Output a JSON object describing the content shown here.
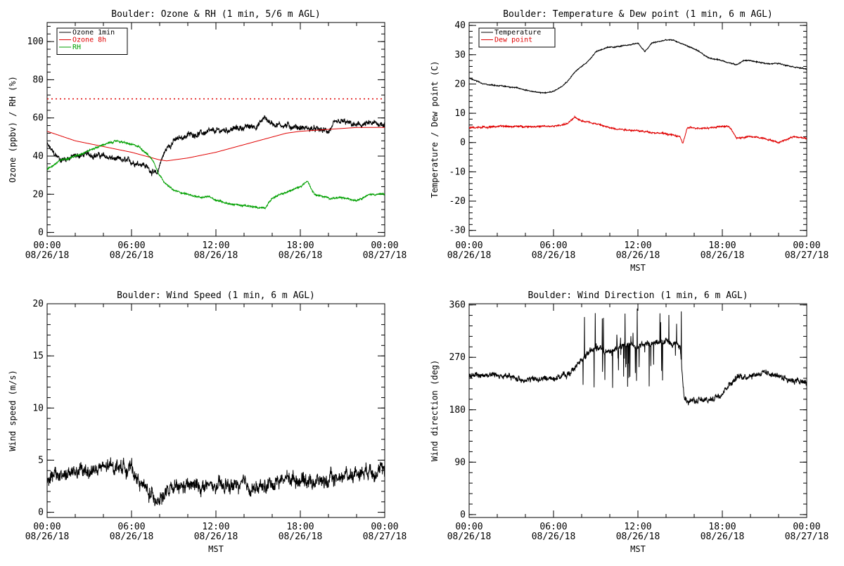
{
  "chart_data": [
    {
      "id": "ozone_rh",
      "type": "line",
      "title": "Boulder: Ozone & RH (1 min, 5/6 m AGL)",
      "ylabel": "Ozone (ppbv) / RH (%)",
      "xlabel": "",
      "ylim": [
        -2,
        110
      ],
      "yticks": [
        0,
        20,
        40,
        60,
        80,
        100
      ],
      "xticks": [
        "00:00\n08/26/18",
        "06:00\n08/26/18",
        "12:00\n08/26/18",
        "18:00\n08/26/18",
        "00:00\n08/27/18"
      ],
      "xlim_hours": [
        0,
        24
      ],
      "legend": {
        "position": "top-left",
        "entries": [
          "Ozone 1min",
          "Ozone 8h",
          "RH"
        ]
      },
      "reference_line": {
        "y": 70,
        "color": "#e00000",
        "style": "dotted"
      },
      "series": [
        {
          "name": "Ozone 1min",
          "color": "#000000",
          "noise": 2.0,
          "points": [
            [
              0,
              46
            ],
            [
              0.5,
              41
            ],
            [
              1,
              38
            ],
            [
              2,
              40
            ],
            [
              3,
              41
            ],
            [
              4,
              40
            ],
            [
              5,
              38
            ],
            [
              6,
              37
            ],
            [
              6.8,
              36
            ],
            [
              7.3,
              33
            ],
            [
              7.8,
              30
            ],
            [
              8.1,
              38
            ],
            [
              8.5,
              44
            ],
            [
              9,
              48
            ],
            [
              10,
              51
            ],
            [
              11,
              52
            ],
            [
              12,
              53
            ],
            [
              13,
              54
            ],
            [
              14,
              55
            ],
            [
              15,
              56
            ],
            [
              15.3,
              59
            ],
            [
              15.5,
              60
            ],
            [
              16,
              57
            ],
            [
              17,
              56
            ],
            [
              18,
              55
            ],
            [
              19,
              54
            ],
            [
              20,
              53
            ],
            [
              20.5,
              57
            ],
            [
              21,
              58
            ],
            [
              22,
              56
            ],
            [
              23,
              57
            ],
            [
              24,
              57
            ]
          ]
        },
        {
          "name": "Ozone 8h",
          "color": "#e00000",
          "noise": 0,
          "points": [
            [
              0,
              53
            ],
            [
              2,
              48
            ],
            [
              4,
              45
            ],
            [
              6,
              42
            ],
            [
              7,
              40
            ],
            [
              8,
              38
            ],
            [
              8.5,
              37.5
            ],
            [
              10,
              39
            ],
            [
              12,
              42
            ],
            [
              14,
              46
            ],
            [
              16,
              50
            ],
            [
              17,
              52
            ],
            [
              18,
              53
            ],
            [
              20,
              54
            ],
            [
              22,
              55
            ],
            [
              24,
              55
            ]
          ]
        },
        {
          "name": "RH",
          "color": "#00a000",
          "noise": 0.6,
          "points": [
            [
              0,
              33
            ],
            [
              1,
              38
            ],
            [
              2,
              40
            ],
            [
              3,
              43
            ],
            [
              4,
              46
            ],
            [
              5,
              48
            ],
            [
              6,
              46
            ],
            [
              6.5,
              45
            ],
            [
              7,
              42
            ],
            [
              7.5,
              38
            ],
            [
              8,
              30
            ],
            [
              8.5,
              25
            ],
            [
              9,
              22
            ],
            [
              10,
              20
            ],
            [
              11,
              18
            ],
            [
              11.5,
              19
            ],
            [
              12,
              17
            ],
            [
              13,
              15
            ],
            [
              14,
              14
            ],
            [
              15,
              13
            ],
            [
              15.5,
              13
            ],
            [
              16,
              18
            ],
            [
              17,
              21
            ],
            [
              18,
              24
            ],
            [
              18.5,
              27
            ],
            [
              19,
              20
            ],
            [
              20,
              18
            ],
            [
              21,
              18
            ],
            [
              22,
              17
            ],
            [
              23,
              20
            ],
            [
              24,
              20
            ]
          ]
        }
      ]
    },
    {
      "id": "temp_dew",
      "type": "line",
      "title": "Boulder: Temperature & Dew point (1 min, 6 m AGL)",
      "ylabel": "Temperature / Dew point (C)",
      "xlabel": "MST",
      "ylim": [
        -32,
        41
      ],
      "yticks": [
        -30,
        -20,
        -10,
        0,
        10,
        20,
        30,
        40
      ],
      "xticks": [
        "00:00\n08/26/18",
        "06:00\n08/26/18",
        "12:00\n08/26/18",
        "18:00\n08/26/18",
        "00:00\n08/27/18"
      ],
      "xlim_hours": [
        0,
        24
      ],
      "legend": {
        "position": "top-left",
        "entries": [
          "Temperature",
          "Dew point"
        ]
      },
      "series": [
        {
          "name": "Temperature",
          "color": "#000000",
          "noise": 0.25,
          "points": [
            [
              0,
              22
            ],
            [
              1,
              20
            ],
            [
              2,
              19.5
            ],
            [
              3,
              19
            ],
            [
              4,
              18
            ],
            [
              5,
              17
            ],
            [
              5.5,
              17
            ],
            [
              6,
              17.5
            ],
            [
              6.5,
              19
            ],
            [
              7,
              21
            ],
            [
              7.5,
              24
            ],
            [
              8,
              26
            ],
            [
              8.5,
              28
            ],
            [
              9,
              31
            ],
            [
              9.5,
              32
            ],
            [
              10,
              32.5
            ],
            [
              11,
              33
            ],
            [
              12,
              34
            ],
            [
              12.5,
              31
            ],
            [
              13,
              34
            ],
            [
              14,
              35
            ],
            [
              14.5,
              35
            ],
            [
              15,
              34
            ],
            [
              15.5,
              33
            ],
            [
              16,
              32
            ],
            [
              17,
              29
            ],
            [
              18,
              28
            ],
            [
              19,
              26.5
            ],
            [
              19.5,
              28
            ],
            [
              20,
              28
            ],
            [
              21,
              27
            ],
            [
              22,
              27
            ],
            [
              23,
              26
            ],
            [
              24,
              25
            ]
          ]
        },
        {
          "name": "Dew point",
          "color": "#e00000",
          "noise": 0.35,
          "points": [
            [
              0,
              5
            ],
            [
              2,
              5.5
            ],
            [
              4,
              5.5
            ],
            [
              6,
              5.5
            ],
            [
              7,
              6.5
            ],
            [
              7.5,
              8.5
            ],
            [
              8,
              7.5
            ],
            [
              9,
              6.5
            ],
            [
              10,
              5
            ],
            [
              11,
              4.5
            ],
            [
              12,
              4
            ],
            [
              13,
              3.5
            ],
            [
              14,
              3
            ],
            [
              15,
              2
            ],
            [
              15.2,
              -0.5
            ],
            [
              15.5,
              5
            ],
            [
              16,
              5
            ],
            [
              17,
              5
            ],
            [
              18,
              5.5
            ],
            [
              18.5,
              5.5
            ],
            [
              19,
              1.5
            ],
            [
              20,
              2
            ],
            [
              21,
              1.5
            ],
            [
              22,
              0
            ],
            [
              23,
              2
            ],
            [
              24,
              1.5
            ]
          ]
        }
      ]
    },
    {
      "id": "wind_speed",
      "type": "line",
      "title": "Boulder: Wind Speed (1 min, 6 m AGL)",
      "ylabel": "Wind speed (m/s)",
      "xlabel": "MST",
      "ylim": [
        -0.5,
        20
      ],
      "yticks": [
        0,
        5,
        10,
        15,
        20
      ],
      "xticks": [
        "00:00\n08/26/18",
        "06:00\n08/26/18",
        "12:00\n08/26/18",
        "18:00\n08/26/18",
        "00:00\n08/27/18"
      ],
      "xlim_hours": [
        0,
        24
      ],
      "series": [
        {
          "name": "",
          "color": "#000000",
          "noise": 0.9,
          "points": [
            [
              0,
              3.2
            ],
            [
              1,
              3.6
            ],
            [
              2,
              3.8
            ],
            [
              3,
              4
            ],
            [
              4,
              4.2
            ],
            [
              5,
              4.5
            ],
            [
              6,
              4.2
            ],
            [
              6.5,
              3
            ],
            [
              7,
              2.2
            ],
            [
              7.5,
              1.5
            ],
            [
              8,
              1.4
            ],
            [
              9,
              2.2
            ],
            [
              10,
              2.5
            ],
            [
              11,
              2.5
            ],
            [
              12,
              2.4
            ],
            [
              13,
              2.5
            ],
            [
              14,
              2.6
            ],
            [
              15,
              2.2
            ],
            [
              16,
              2.8
            ],
            [
              17,
              3.3
            ],
            [
              18,
              3.2
            ],
            [
              19,
              3
            ],
            [
              20,
              3
            ],
            [
              21,
              3.5
            ],
            [
              22,
              3.8
            ],
            [
              23,
              4.2
            ],
            [
              24,
              3.8
            ]
          ]
        }
      ]
    },
    {
      "id": "wind_dir",
      "type": "line",
      "title": "Boulder: Wind Direction (1 min, 6 m AGL)",
      "ylabel": "Wind direction (deg)",
      "xlabel": "MST",
      "ylim": [
        -5,
        362
      ],
      "yticks": [
        0,
        90,
        180,
        270,
        360
      ],
      "xticks": [
        "00:00\n08/26/18",
        "06:00\n08/26/18",
        "12:00\n08/26/18",
        "18:00\n08/26/18",
        "00:00\n08/27/18"
      ],
      "xlim_hours": [
        0,
        24
      ],
      "series": [
        {
          "name": "",
          "color": "#000000",
          "noise": 7,
          "points": [
            [
              0,
              240
            ],
            [
              1,
              240
            ],
            [
              2,
              240
            ],
            [
              3,
              235
            ],
            [
              4,
              232
            ],
            [
              5,
              232
            ],
            [
              6,
              235
            ],
            [
              7,
              240
            ],
            [
              7.5,
              250
            ],
            [
              8,
              270
            ],
            [
              9,
              285
            ],
            [
              10,
              280
            ],
            [
              11,
              290
            ],
            [
              12,
              290
            ],
            [
              13,
              295
            ],
            [
              14,
              300
            ],
            [
              15,
              290
            ],
            [
              15.3,
              200
            ],
            [
              16,
              195
            ],
            [
              17,
              195
            ],
            [
              18,
              210
            ],
            [
              18.5,
              225
            ],
            [
              19,
              235
            ],
            [
              20,
              240
            ],
            [
              21,
              245
            ],
            [
              22,
              238
            ],
            [
              23,
              232
            ],
            [
              24,
              225
            ]
          ],
          "wild_segments": [
            [
              8,
              15.2
            ]
          ]
        }
      ]
    }
  ]
}
